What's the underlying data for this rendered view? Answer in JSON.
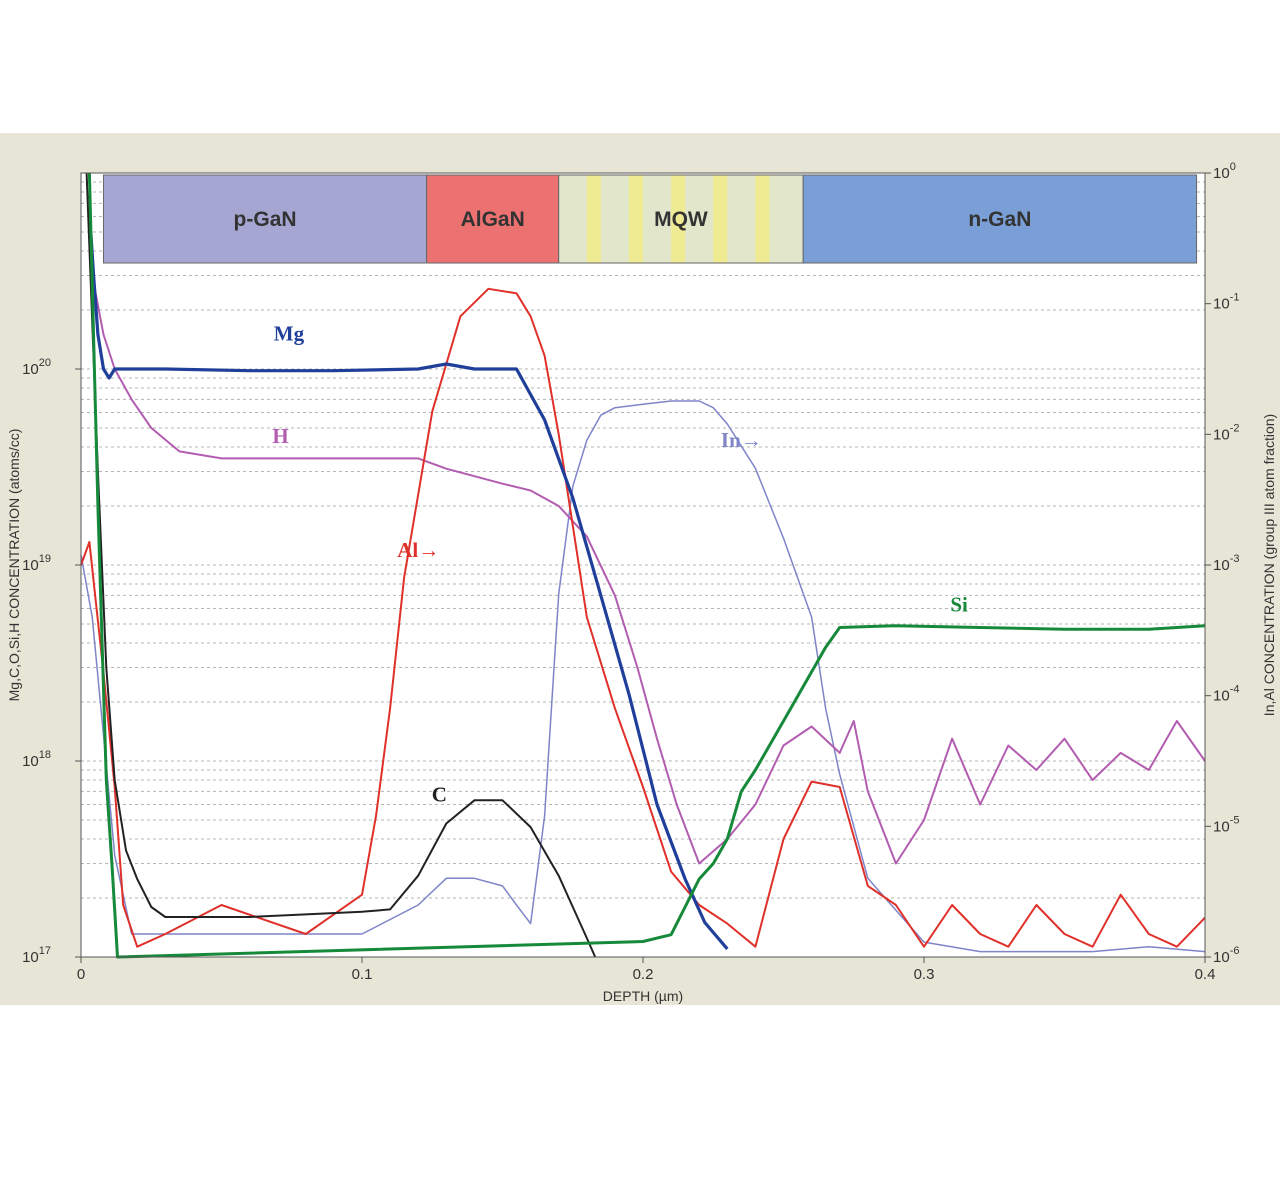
{
  "chart_data": {
    "type": "line",
    "title": "",
    "xlabel": "DEPTH (µm)",
    "ylabel": "Mg,C,O,Si,H CONCENTRATION (atoms/cc)",
    "y2label": "In,Al CONCENTRATION (group III atom fraction)",
    "xlim": [
      0,
      0.4
    ],
    "ylim": [
      1e+17,
      1e+21
    ],
    "y2lim": [
      1e-06,
      1
    ],
    "yscale": "log",
    "grid": "dashed horizontal",
    "x_ticks": [
      "0",
      "0.1",
      "0.2",
      "0.3",
      "0.4"
    ],
    "y_ticks": [
      {
        "base": "10",
        "exp": "17"
      },
      {
        "base": "10",
        "exp": "18"
      },
      {
        "base": "10",
        "exp": "19"
      },
      {
        "base": "10",
        "exp": "20"
      }
    ],
    "y2_ticks": [
      {
        "base": "10",
        "exp": "0"
      },
      {
        "base": "10",
        "exp": "-1"
      },
      {
        "base": "10",
        "exp": "-2"
      },
      {
        "base": "10",
        "exp": "-3"
      },
      {
        "base": "10",
        "exp": "-4"
      },
      {
        "base": "10",
        "exp": "-5"
      },
      {
        "base": "10",
        "exp": "-6"
      }
    ],
    "layers": [
      {
        "label": "p-GaN",
        "x0": 0.008,
        "x1": 0.123,
        "color": "#a6a6d2"
      },
      {
        "label": "AlGaN",
        "x0": 0.123,
        "x1": 0.17,
        "color": "#ec7272"
      },
      {
        "label": "MQW",
        "x0": 0.17,
        "x1": 0.257,
        "color": "#e2e6ca",
        "stripe_color": "#efeb93",
        "stripes": [
          [
            0.18,
            0.185
          ],
          [
            0.195,
            0.2
          ],
          [
            0.21,
            0.215
          ],
          [
            0.225,
            0.23
          ],
          [
            0.24,
            0.245
          ]
        ]
      },
      {
        "label": "n-GaN",
        "x0": 0.257,
        "x1": 0.397,
        "color": "#7a9ed6"
      }
    ],
    "series": [
      {
        "name": "Mg",
        "axis": "left",
        "color": "#1f3f9a",
        "width": 3.2,
        "x": [
          0.0035,
          0.0045,
          0.006,
          0.008,
          0.01,
          0.012,
          0.016,
          0.03,
          0.06,
          0.09,
          0.12,
          0.13,
          0.14,
          0.155,
          0.165,
          0.175,
          0.185,
          0.195,
          0.205,
          0.215,
          0.222,
          0.23
        ],
        "y": [
          5e+20,
          3e+20,
          1.5e+20,
          1e+20,
          9e+19,
          1e+20,
          1e+20,
          1e+20,
          9.8e+19,
          9.8e+19,
          1e+20,
          1.06e+20,
          1e+20,
          1e+20,
          5.5e+19,
          2.2e+19,
          7e+18,
          2.2e+18,
          6e+17,
          2.5e+17,
          1.5e+17,
          1.1e+17
        ]
      },
      {
        "name": "H",
        "axis": "left",
        "color": "#b25db0",
        "width": 2,
        "x": [
          0.004,
          0.008,
          0.012,
          0.018,
          0.025,
          0.035,
          0.05,
          0.08,
          0.11,
          0.12,
          0.13,
          0.15,
          0.16,
          0.17,
          0.18,
          0.19,
          0.198,
          0.205,
          0.212,
          0.22,
          0.23,
          0.24,
          0.25,
          0.26,
          0.27,
          0.275,
          0.28,
          0.29,
          0.3,
          0.31,
          0.32,
          0.33,
          0.34,
          0.35,
          0.36,
          0.37,
          0.38,
          0.39,
          0.4
        ],
        "y": [
          3e+20,
          1.5e+20,
          1e+20,
          7e+19,
          5e+19,
          3.8e+19,
          3.5e+19,
          3.5e+19,
          3.5e+19,
          3.5e+19,
          3.1e+19,
          2.6e+19,
          2.4e+19,
          2e+19,
          1.4e+19,
          7e+18,
          3e+18,
          1.3e+18,
          6e+17,
          3e+17,
          4e+17,
          6e+17,
          1.2e+18,
          1.5e+18,
          1.1e+18,
          1.6e+18,
          7e+17,
          3e+17,
          5e+17,
          1.3e+18,
          6e+17,
          1.2e+18,
          9e+17,
          1.3e+18,
          8e+17,
          1.1e+18,
          9e+17,
          1.6e+18,
          1e+18
        ]
      },
      {
        "name": "Si",
        "axis": "left",
        "color": "#168a3a",
        "width": 3,
        "x": [
          0.003,
          0.006,
          0.009,
          0.011,
          0.013,
          0.2,
          0.21,
          0.215,
          0.22,
          0.225,
          0.23,
          0.235,
          0.24,
          0.25,
          0.265,
          0.27,
          0.29,
          0.32,
          0.35,
          0.38,
          0.4
        ],
        "y": [
          2e+21,
          2e+19,
          8e+17,
          3e+17,
          1e+17,
          1.2e+17,
          1.3e+17,
          1.8e+17,
          2.5e+17,
          3e+17,
          4e+17,
          7e+17,
          9e+17,
          1.6e+18,
          3.8e+18,
          4.8e+18,
          4.9e+18,
          4.8e+18,
          4.7e+18,
          4.7e+18,
          4.9e+18
        ]
      },
      {
        "name": "C",
        "axis": "left",
        "color": "#222222",
        "width": 2,
        "x": [
          0.002,
          0.006,
          0.009,
          0.012,
          0.016,
          0.02,
          0.025,
          0.03,
          0.04,
          0.06,
          0.08,
          0.1,
          0.11,
          0.12,
          0.13,
          0.14,
          0.15,
          0.16,
          0.17,
          0.175,
          0.18,
          0.183
        ],
        "y": [
          2e+21,
          3e+19,
          3e+18,
          8e+17,
          3.5e+17,
          2.5e+17,
          1.8e+17,
          1.6e+17,
          1.6e+17,
          1.6e+17,
          1.65e+17,
          1.7e+17,
          1.75e+17,
          2.6e+17,
          4.8e+17,
          6.3e+17,
          6.3e+17,
          4.6e+17,
          2.6e+17,
          1.8e+17,
          1.25e+17,
          1e+17
        ]
      },
      {
        "name": "Al",
        "axis": "right",
        "color": "#e0302a",
        "width": 2,
        "x": [
          0.0,
          0.003,
          0.005,
          0.008,
          0.012,
          0.015,
          0.02,
          0.03,
          0.05,
          0.08,
          0.1,
          0.105,
          0.11,
          0.115,
          0.125,
          0.135,
          0.145,
          0.155,
          0.16,
          0.165,
          0.17,
          0.175,
          0.18,
          0.19,
          0.2,
          0.21,
          0.22,
          0.23,
          0.24,
          0.25,
          0.26,
          0.27,
          0.28,
          0.29,
          0.3,
          0.31,
          0.32,
          0.33,
          0.34,
          0.35,
          0.36,
          0.37,
          0.38,
          0.39,
          0.4
        ],
        "y": [
          0.001,
          0.0015,
          0.0006,
          0.00015,
          2e-05,
          2.5e-06,
          1.2e-06,
          1.5e-06,
          2.5e-06,
          1.5e-06,
          3e-06,
          1.2e-05,
          8e-05,
          0.0008,
          0.015,
          0.08,
          0.13,
          0.12,
          0.08,
          0.04,
          0.01,
          0.002,
          0.0004,
          8e-05,
          2e-05,
          4.5e-06,
          2.5e-06,
          1.8e-06,
          1.2e-06,
          8e-06,
          2.2e-05,
          2e-05,
          3.5e-06,
          2.5e-06,
          1.2e-06,
          2.5e-06,
          1.5e-06,
          1.2e-06,
          2.5e-06,
          1.5e-06,
          1.2e-06,
          3e-06,
          1.5e-06,
          1.2e-06,
          2e-06
        ]
      },
      {
        "name": "In",
        "axis": "right",
        "color": "#7e84c8",
        "width": 1.5,
        "x": [
          0.0,
          0.004,
          0.008,
          0.012,
          0.018,
          0.04,
          0.07,
          0.1,
          0.12,
          0.13,
          0.14,
          0.15,
          0.155,
          0.16,
          0.165,
          0.17,
          0.175,
          0.18,
          0.185,
          0.19,
          0.2,
          0.21,
          0.22,
          0.225,
          0.23,
          0.24,
          0.25,
          0.26,
          0.265,
          0.27,
          0.28,
          0.3,
          0.32,
          0.34,
          0.36,
          0.38,
          0.4
        ],
        "y": [
          0.0012,
          0.0004,
          5e-05,
          6e-06,
          1.5e-06,
          1.5e-06,
          1.5e-06,
          1.5e-06,
          2.5e-06,
          4e-06,
          4e-06,
          3.5e-06,
          2.5e-06,
          1.8e-06,
          1.2e-05,
          0.0006,
          0.004,
          0.009,
          0.014,
          0.016,
          0.017,
          0.018,
          0.018,
          0.016,
          0.012,
          0.0055,
          0.0016,
          0.0004,
          8e-05,
          2.5e-05,
          4e-06,
          1.3e-06,
          1.1e-06,
          1.1e-06,
          1.1e-06,
          1.2e-06,
          1.1e-06
        ]
      }
    ],
    "annotations": [
      {
        "text": "Mg",
        "series": "Mg",
        "x": 0.074,
        "y": 1.4e+20
      },
      {
        "text": "H",
        "series": "H",
        "x": 0.071,
        "y": 4.2e+19
      },
      {
        "text": "Al→",
        "series": "Al",
        "x": 0.12,
        "y": 1.1e+19
      },
      {
        "text": "In→",
        "series": "In",
        "x": 0.235,
        "y": 4e+19
      },
      {
        "text": "Si",
        "series": "Si",
        "x": 0.3125,
        "y": 5.8e+18
      },
      {
        "text": "C",
        "series": "C",
        "x": 0.1275,
        "y": 6.2e+17
      }
    ]
  }
}
